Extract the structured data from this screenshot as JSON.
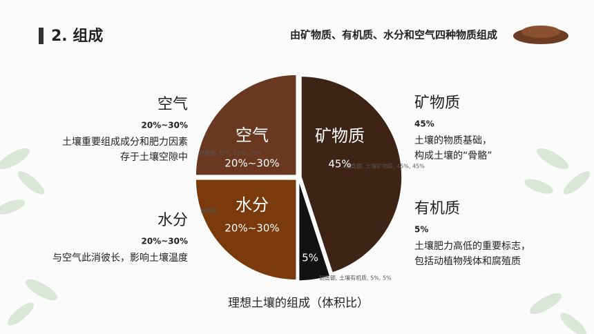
{
  "header": {
    "title": "2. 组成",
    "subtitle": "由矿物质、有机质、水分和空气四种物质组成"
  },
  "chart_data": {
    "type": "pie",
    "title": "理想土壤的组成（体积比）",
    "categories": [
      "矿物质",
      null,
      "水分",
      "空气"
    ],
    "values": [
      45,
      5,
      25,
      25
    ],
    "value_labels": [
      "45%",
      "5%",
      "20%~30%",
      "20%~30%"
    ],
    "colors": [
      "#3e2415",
      "#121212",
      "#7b3a0b",
      "#6a3821"
    ],
    "small_labels": [
      "销售额, 土壤矿物质, 45%, 45%",
      "销售额, 土壤有机质, 5%, 5%",
      "销售额,",
      "销售额, 空气, 25%, 25%"
    ]
  },
  "notes": [
    {
      "title": "空气",
      "range": "20%~30%",
      "lines": [
        "土壤重要组成成分和肥力因素",
        "存于土壤空隙中"
      ]
    },
    {
      "title": "水分",
      "range": "20%~30%",
      "lines": [
        "与空气此消彼长，影响土壤温度"
      ]
    },
    {
      "title": "矿物质",
      "range": "45%",
      "lines": [
        "土壤的物质基础，",
        "构成土壤的“骨骼”"
      ]
    },
    {
      "title": "有机质",
      "range": "5%",
      "lines": [
        "土壤肥力高低的重要标志，",
        "包括动植物残体和腐殖质"
      ]
    }
  ]
}
